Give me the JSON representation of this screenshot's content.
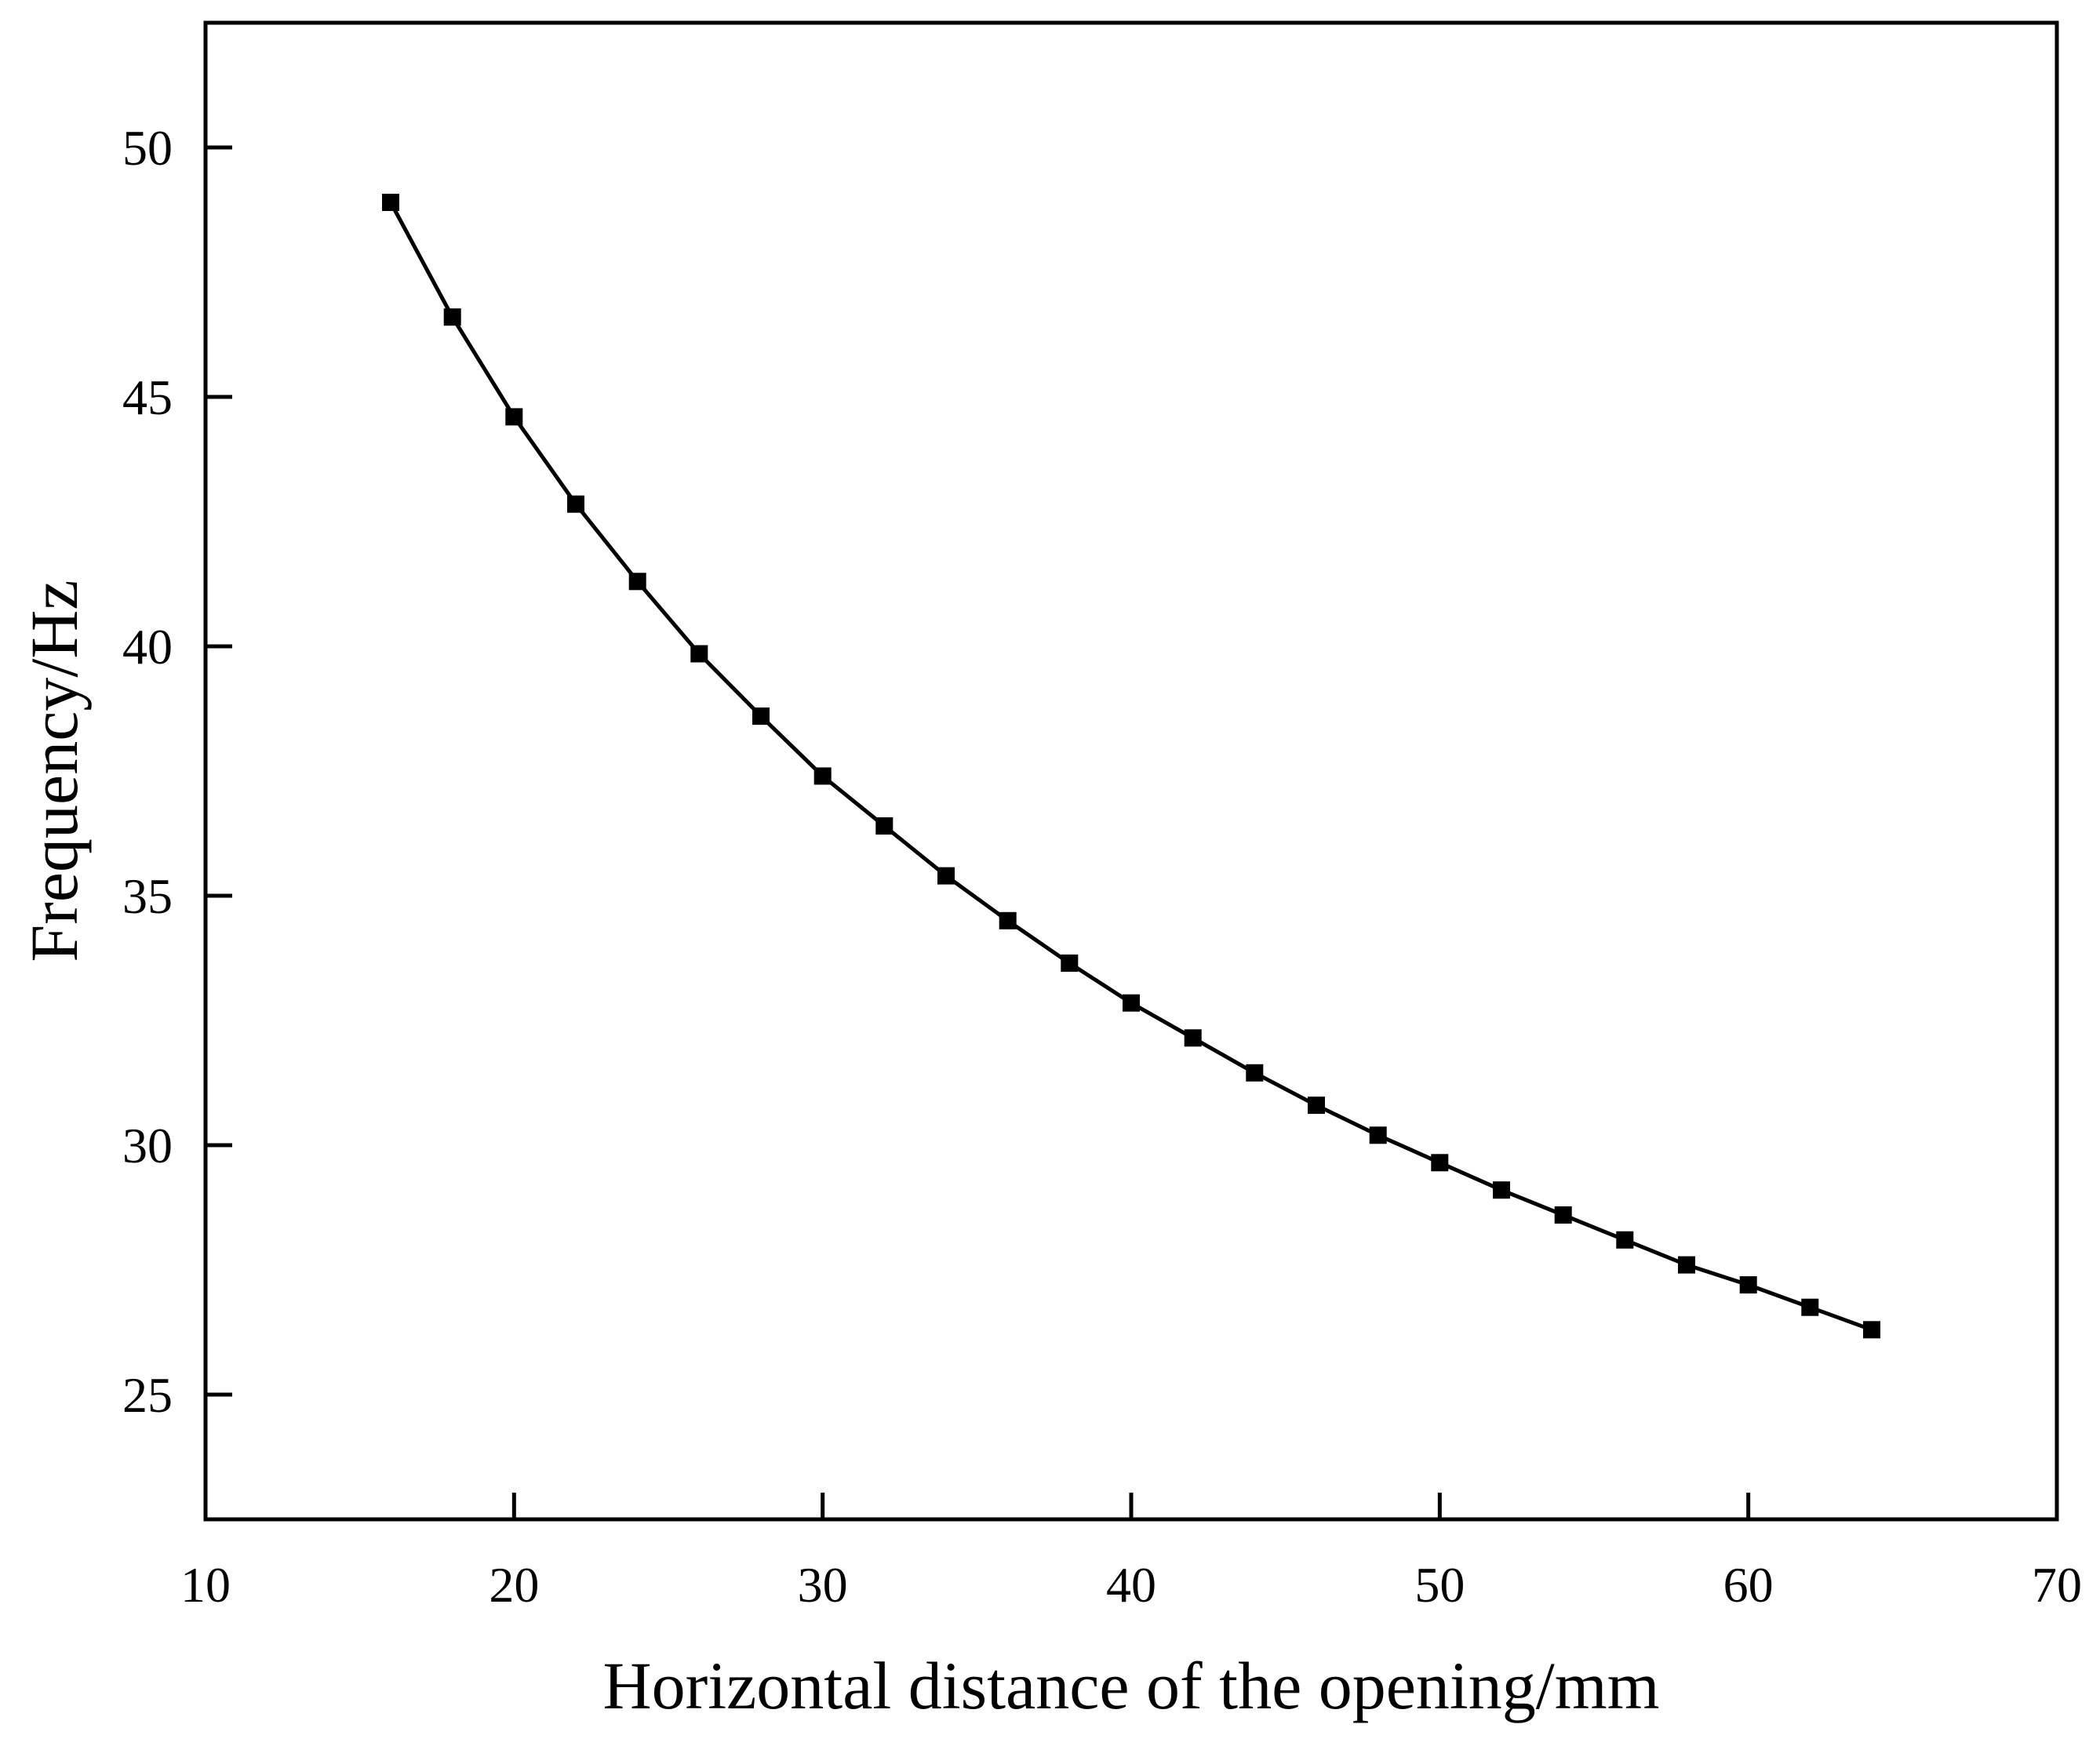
{
  "chart_data": {
    "type": "line",
    "title": "",
    "xlabel": "Horizontal distance of the opening/mm",
    "ylabel": "Frequency/Hz",
    "xlim": [
      10,
      70
    ],
    "ylim": [
      22.5,
      52.5
    ],
    "xticks": [
      10,
      20,
      30,
      40,
      50,
      60,
      70
    ],
    "yticks": [
      25,
      30,
      35,
      40,
      45,
      50
    ],
    "xtick_labels": [
      "10",
      "20",
      "30",
      "40",
      "50",
      "60",
      "70"
    ],
    "ytick_labels": [
      "25",
      "30",
      "35",
      "40",
      "45",
      "50"
    ],
    "grid": false,
    "legend": "none",
    "marker": "square",
    "color": "#000000",
    "series": [
      {
        "x": [
          16,
          18,
          20,
          22,
          24,
          26,
          28,
          30,
          32,
          34,
          36,
          38,
          40,
          42,
          44,
          46,
          48,
          50,
          52,
          54,
          56,
          58,
          60,
          62,
          64
        ],
        "y": [
          48.9,
          46.6,
          44.6,
          42.85,
          41.3,
          39.85,
          38.6,
          37.4,
          36.4,
          35.4,
          34.5,
          33.65,
          32.85,
          32.15,
          31.45,
          30.8,
          30.2,
          29.65,
          29.1,
          28.6,
          28.1,
          27.6,
          27.2,
          26.75,
          26.3
        ]
      }
    ]
  }
}
